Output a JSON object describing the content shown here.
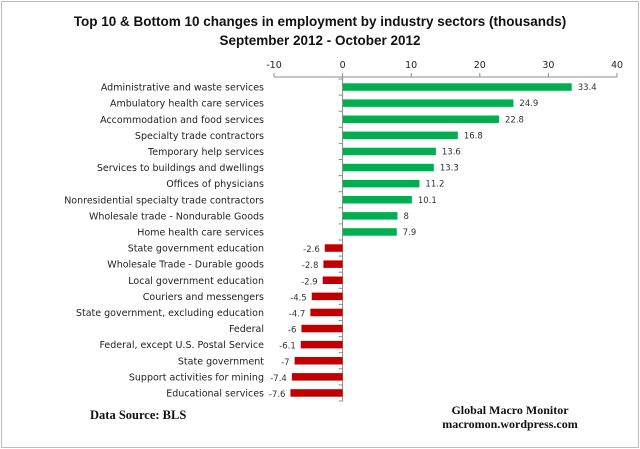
{
  "chart_data": {
    "type": "bar",
    "orientation": "horizontal",
    "title": "Top 10 & Bottom 10 changes in employment by industry sectors (thousands)",
    "subtitle": "September 2012 - October 2012",
    "xlabel": "",
    "ylabel": "",
    "xlim": [
      -10,
      40
    ],
    "x_ticks": [
      -10,
      0,
      10,
      20,
      30,
      40
    ],
    "grid": false,
    "colors": {
      "positive": "#00B050",
      "negative": "#C00000"
    },
    "categories": [
      "Administrative and waste services",
      "Ambulatory health care services",
      "Accommodation and food services",
      "Specialty trade contractors",
      "Temporary help services",
      "Services to buildings and dwellings",
      "Offices of physicians",
      "Nonresidential specialty trade contractors",
      "Wholesale trade - Nondurable Goods",
      "Home health care services",
      "State government education",
      "Wholesale Trade - Durable goods",
      "Local government education",
      "Couriers and messengers",
      "State government, excluding education",
      "Federal",
      "Federal, except U.S. Postal Service",
      "State government",
      "Support activities for mining",
      "Educational services"
    ],
    "values": [
      33.4,
      24.9,
      22.8,
      16.8,
      13.6,
      13.3,
      11.2,
      10.1,
      8,
      7.9,
      -2.6,
      -2.8,
      -2.9,
      -4.5,
      -4.7,
      -6,
      -6.1,
      -7,
      -7.4,
      -7.6
    ],
    "value_labels": [
      "33.4",
      "24.9",
      "22.8",
      "16.8",
      "13.6",
      "13.3",
      "11.2",
      "10.1",
      "8",
      "7.9",
      "-2.6",
      "-2.8",
      "-2.9",
      "-4.5",
      "-4.7",
      "-6",
      "-6.1",
      "-7",
      "-7.4",
      "-7.6"
    ]
  },
  "footer": {
    "source": "Data Source:  BLS",
    "brand_name": "Global Macro Monitor",
    "brand_url": "macromon.wordpress.com"
  }
}
